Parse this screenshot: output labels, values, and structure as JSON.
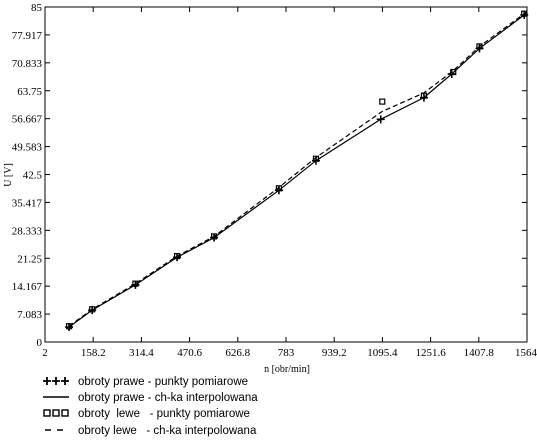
{
  "chart_data": {
    "type": "line",
    "xlabel": "n [obr/min]",
    "ylabel": "U [V]",
    "xlim": [
      2,
      1564
    ],
    "ylim": [
      0,
      85
    ],
    "x_ticks": [
      "2",
      "158.2",
      "314.4",
      "470.6",
      "626.8",
      "783",
      "939.2",
      "1095.4",
      "1251.6",
      "1407.8",
      "1564"
    ],
    "y_ticks": [
      "0",
      "7.083",
      "14.167",
      "21.25",
      "28.333",
      "35.417",
      "42.5",
      "49.583",
      "56.667",
      "63.75",
      "70.833",
      "77.917",
      "85"
    ],
    "grid": false,
    "series": [
      {
        "name": "obroty prawe - punkty pomiarowe",
        "style": "plus-markers",
        "x": [
          80,
          155,
          295,
          430,
          550,
          760,
          880,
          1090,
          1230,
          1320,
          1410,
          1555
        ],
        "y": [
          3.8,
          8.1,
          14.5,
          21.5,
          26.5,
          38.5,
          46.0,
          56.5,
          62.0,
          68.0,
          74.5,
          83.0
        ]
      },
      {
        "name": "obroty prawe - ch-ka interpolowana",
        "style": "solid",
        "x": [
          80,
          155,
          295,
          430,
          550,
          760,
          880,
          1090,
          1230,
          1320,
          1410,
          1564
        ],
        "y": [
          3.8,
          8.1,
          14.5,
          21.5,
          26.5,
          38.5,
          46.0,
          56.5,
          62.0,
          68.0,
          74.5,
          83.5
        ]
      },
      {
        "name": "obroty  lewe   - punkty pomiarowe",
        "style": "square-markers",
        "x": [
          80,
          155,
          295,
          430,
          550,
          760,
          880,
          1095,
          1230,
          1325,
          1410,
          1555
        ],
        "y": [
          4.0,
          8.3,
          14.8,
          21.8,
          26.8,
          39.0,
          46.5,
          61.0,
          62.5,
          68.5,
          75.0,
          83.3
        ]
      },
      {
        "name": "obroty lewe   - ch-ka interpolowana",
        "style": "dashed",
        "x": [
          80,
          155,
          295,
          430,
          550,
          760,
          880,
          1095,
          1230,
          1325,
          1410,
          1564
        ],
        "y": [
          4.0,
          8.3,
          14.8,
          21.8,
          26.8,
          39.2,
          46.8,
          58.5,
          63.2,
          68.8,
          75.0,
          83.8
        ]
      }
    ]
  },
  "colors": {
    "background": "#ffffff",
    "ink": "#000000"
  }
}
